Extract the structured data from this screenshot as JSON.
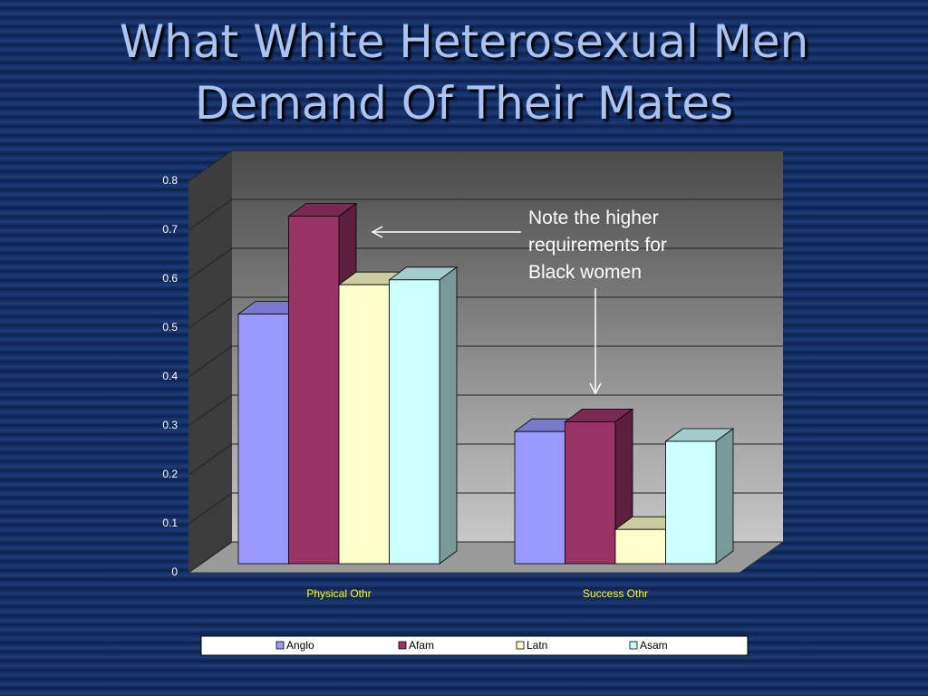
{
  "chart_data": {
    "type": "bar3d",
    "title": "What White Heterosexual Men Demand Of Their Mates",
    "annotation": "Note the higher requirements for Black women",
    "categories": [
      "Physical Othr",
      "Success Othr"
    ],
    "series": [
      {
        "name": "Anglo",
        "color": "#9999ff",
        "values": [
          0.51,
          0.27
        ]
      },
      {
        "name": "Afam",
        "color": "#993366",
        "values": [
          0.71,
          0.29
        ]
      },
      {
        "name": "Latn",
        "color": "#ffffcc",
        "values": [
          0.57,
          0.07
        ]
      },
      {
        "name": "Asam",
        "color": "#ccffff",
        "values": [
          0.58,
          0.25
        ]
      }
    ],
    "ylim": [
      0,
      0.8
    ],
    "yticks": [
      0,
      0.1,
      0.2,
      0.3,
      0.4,
      0.5,
      0.6,
      0.7,
      0.8
    ],
    "grid": true
  }
}
